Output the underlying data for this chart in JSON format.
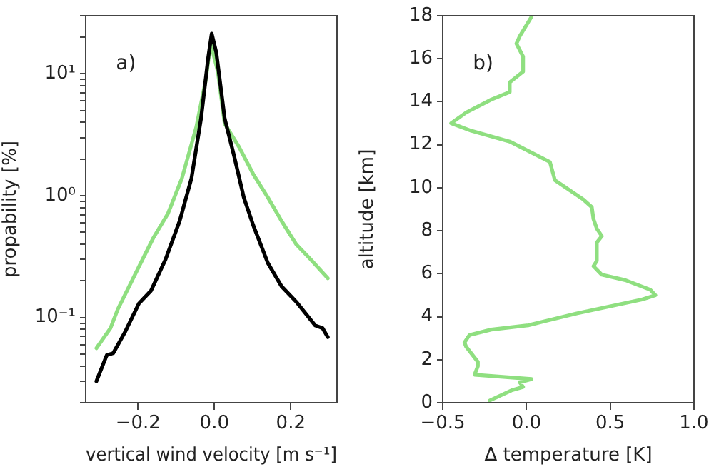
{
  "chart_data": [
    {
      "type": "line",
      "xlabel": "vertical wind velocity [m s⁻¹]",
      "ylabel": "propability [%]",
      "log": "y",
      "annotations": [
        "a)"
      ],
      "xlim": [
        -0.337,
        0.321
      ],
      "xticks": [
        {
          "value": -0.2,
          "label": "−0.2"
        },
        {
          "value": 0,
          "label": "0.0"
        },
        {
          "value": 0.2,
          "label": "0.2"
        }
      ],
      "ylim": [
        0.02,
        30
      ],
      "yticks": [
        {
          "value": 0.02,
          "label": null
        },
        {
          "value": 0.03,
          "label": null
        },
        {
          "value": 0.04,
          "label": null
        },
        {
          "value": 0.05,
          "label": null
        },
        {
          "value": 0.06,
          "label": null
        },
        {
          "value": 0.07,
          "label": null
        },
        {
          "value": 0.08,
          "label": null
        },
        {
          "value": 0.09,
          "label": null
        },
        {
          "value": 0.1,
          "label": "10⁻¹"
        },
        {
          "value": 0.2,
          "label": null
        },
        {
          "value": 0.3,
          "label": null
        },
        {
          "value": 0.4,
          "label": null
        },
        {
          "value": 0.5,
          "label": null
        },
        {
          "value": 0.6,
          "label": null
        },
        {
          "value": 0.7,
          "label": null
        },
        {
          "value": 0.8,
          "label": null
        },
        {
          "value": 0.9,
          "label": null
        },
        {
          "value": 1,
          "label": "10⁰"
        },
        {
          "value": 2,
          "label": null
        },
        {
          "value": 3,
          "label": null
        },
        {
          "value": 4,
          "label": null
        },
        {
          "value": 5,
          "label": null
        },
        {
          "value": 6,
          "label": null
        },
        {
          "value": 7,
          "label": null
        },
        {
          "value": 8,
          "label": null
        },
        {
          "value": 9,
          "label": null
        },
        {
          "value": 10,
          "label": "10¹"
        },
        {
          "value": 20,
          "label": null
        },
        {
          "value": 30,
          "label": null
        }
      ],
      "series": [
        {
          "color": "#000000",
          "x": [
            -0.309,
            -0.282,
            -0.265,
            -0.235,
            -0.198,
            -0.166,
            -0.128,
            -0.091,
            -0.06,
            -0.035,
            -0.016,
            -0.007,
            0.005,
            0.027,
            0.052,
            0.077,
            0.102,
            0.14,
            0.176,
            0.214,
            0.264,
            0.283,
            0.297
          ],
          "values": [
            0.03,
            0.049,
            0.051,
            0.075,
            0.13,
            0.166,
            0.3,
            0.62,
            1.39,
            4.3,
            13.7,
            21.4,
            15,
            4.3,
            2.1,
            0.97,
            0.57,
            0.28,
            0.18,
            0.135,
            0.086,
            0.082,
            0.069
          ]
        },
        {
          "color": "#8fdf80",
          "x": [
            -0.309,
            -0.272,
            -0.253,
            -0.198,
            -0.16,
            -0.122,
            -0.085,
            -0.047,
            -0.022,
            -0.01,
            0.009,
            0.027,
            0.065,
            0.102,
            0.14,
            0.176,
            0.214,
            0.252,
            0.297
          ],
          "values": [
            0.056,
            0.082,
            0.117,
            0.26,
            0.45,
            0.71,
            1.39,
            3.7,
            9.1,
            17.9,
            10.5,
            3.9,
            2.5,
            1.5,
            0.97,
            0.62,
            0.4,
            0.3,
            0.21
          ]
        }
      ]
    },
    {
      "type": "line",
      "xlabel": "Δ temperature [K]",
      "ylabel": "altitude [km]",
      "annotations": [
        "b)"
      ],
      "xlim": [
        -0.5,
        1.0
      ],
      "xticks": [
        {
          "value": -0.5,
          "label": "−0.5"
        },
        {
          "value": 0,
          "label": "0.0"
        },
        {
          "value": 0.5,
          "label": "0.5"
        },
        {
          "value": 1,
          "label": "1.0"
        }
      ],
      "ylim": [
        0,
        18
      ],
      "yticks": [
        0,
        2,
        4,
        6,
        8,
        10,
        12,
        14,
        16,
        18
      ],
      "series": [
        {
          "color": "#8fdf80",
          "x": [
            -0.22,
            -0.09,
            -0.02,
            -0.04,
            0.03,
            -0.31,
            -0.29,
            -0.29,
            -0.36,
            -0.37,
            -0.34,
            -0.21,
            0.01,
            0.3,
            0.69,
            0.77,
            0.74,
            0.59,
            0.45,
            0.4,
            0.42,
            0.42,
            0.45,
            0.42,
            0.4,
            0.39,
            0.34,
            0.17,
            0.14,
            -0.1,
            -0.33,
            -0.45,
            -0.36,
            -0.21,
            -0.1,
            -0.1,
            -0.02,
            -0.02,
            -0.06,
            -0.04,
            0.03
          ],
          "values": [
            0.1,
            0.57,
            0.73,
            0.95,
            1.1,
            1.3,
            1.7,
            1.9,
            2.6,
            2.8,
            3.15,
            3.4,
            3.6,
            4.15,
            4.8,
            5.0,
            5.25,
            5.7,
            5.95,
            6.35,
            6.6,
            7.45,
            7.75,
            8.1,
            8.55,
            9.1,
            9.45,
            10.35,
            11.2,
            12.15,
            12.65,
            13.0,
            13.5,
            14.1,
            14.45,
            14.9,
            15.4,
            16.1,
            16.7,
            17.05,
            17.95
          ]
        }
      ]
    }
  ]
}
